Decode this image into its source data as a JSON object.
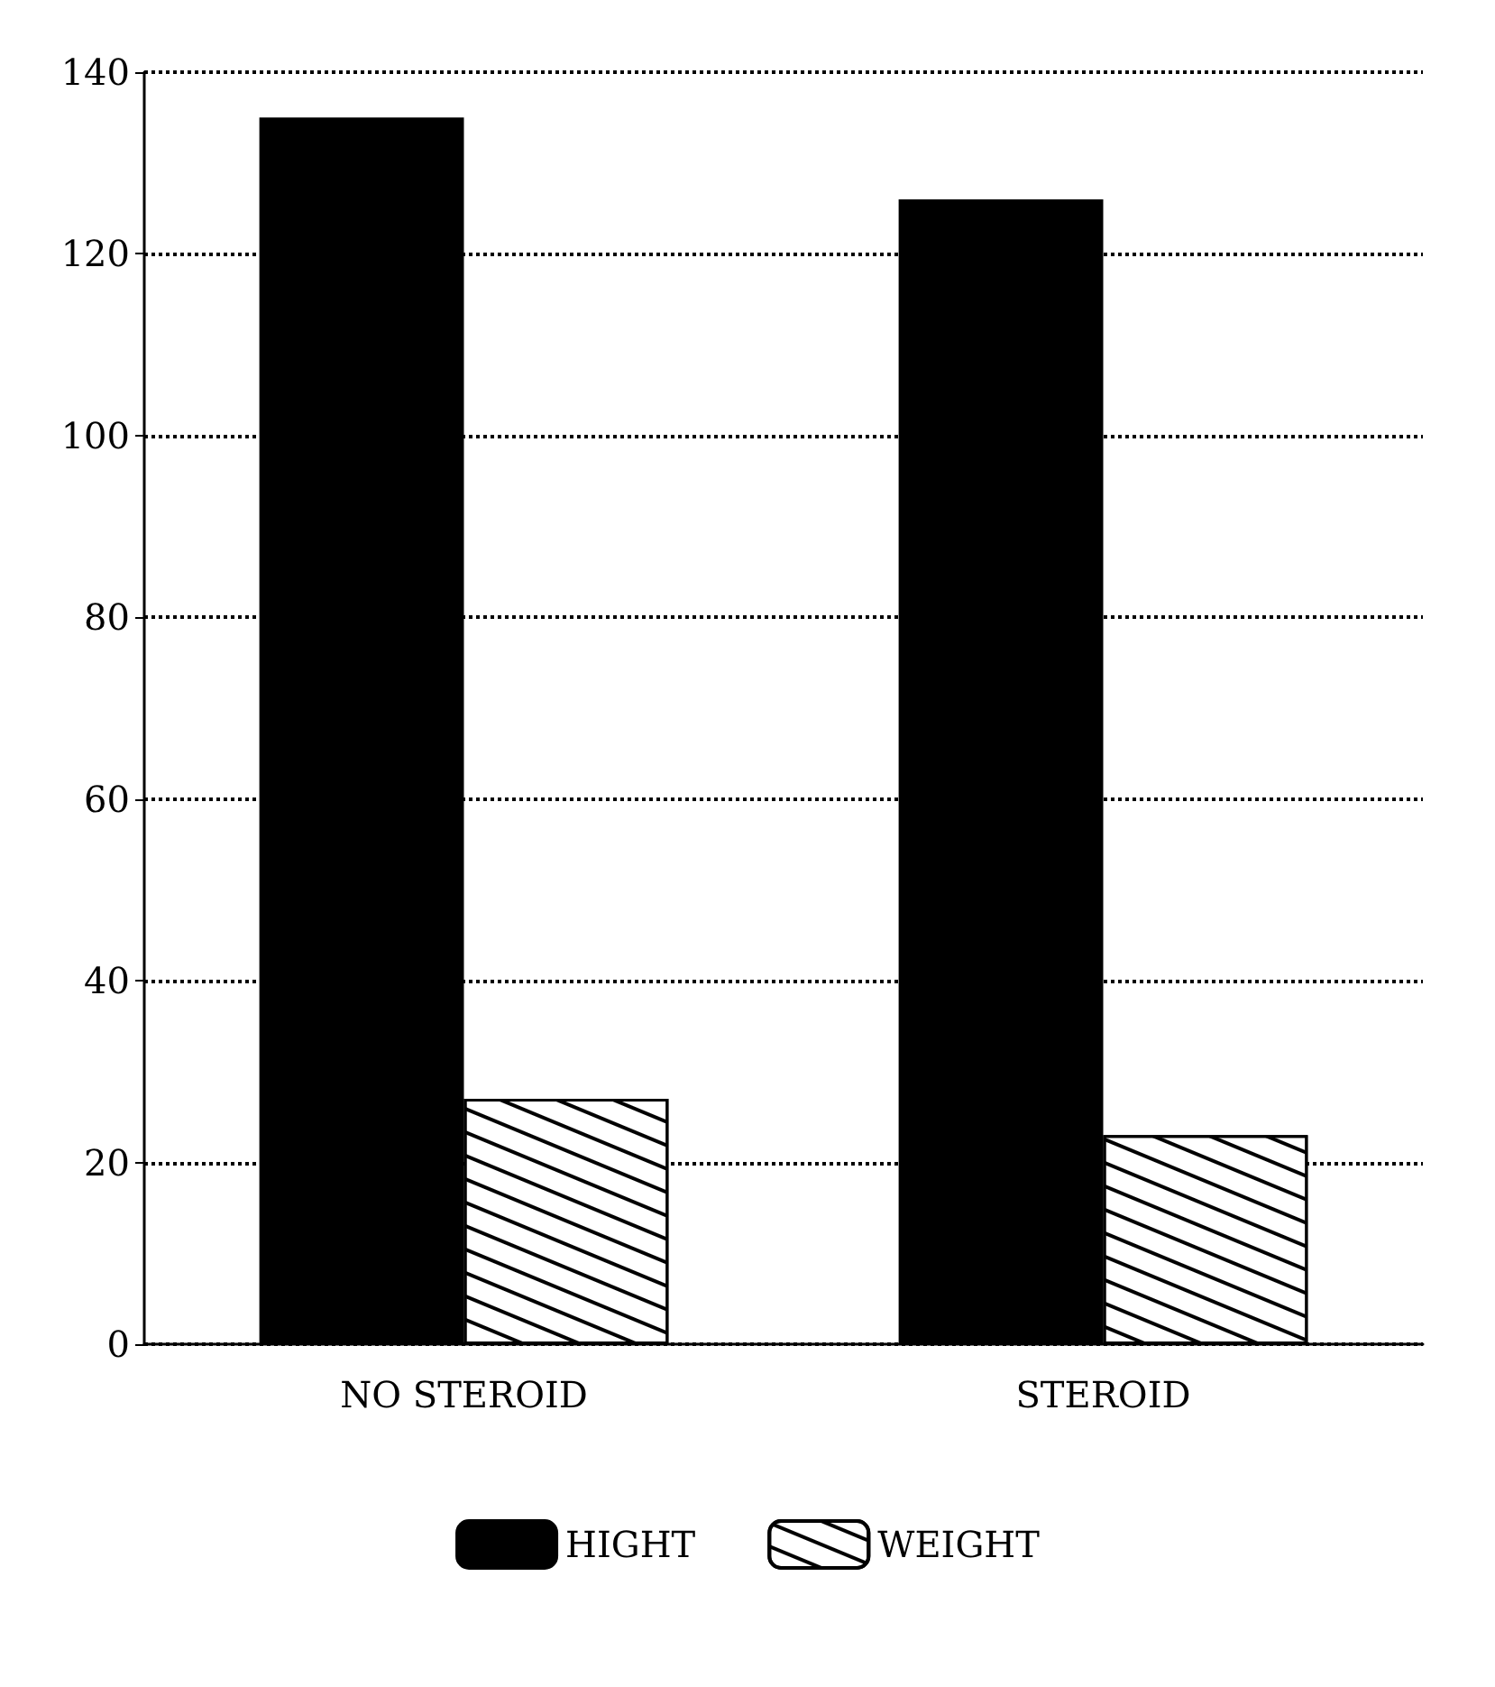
{
  "chart_data": {
    "type": "bar",
    "categories": [
      "NO STEROID",
      "STEROID"
    ],
    "series": [
      {
        "name": "HIGHT",
        "color": "#000000",
        "values": [
          135,
          126
        ]
      },
      {
        "name": "WEIGHT",
        "color": "#ffffff",
        "values": [
          27,
          23
        ]
      }
    ],
    "ylim": [
      0,
      140
    ],
    "yticks": [
      0,
      20,
      40,
      60,
      80,
      100,
      120,
      140
    ],
    "grid": "y",
    "legend": "bottom"
  }
}
